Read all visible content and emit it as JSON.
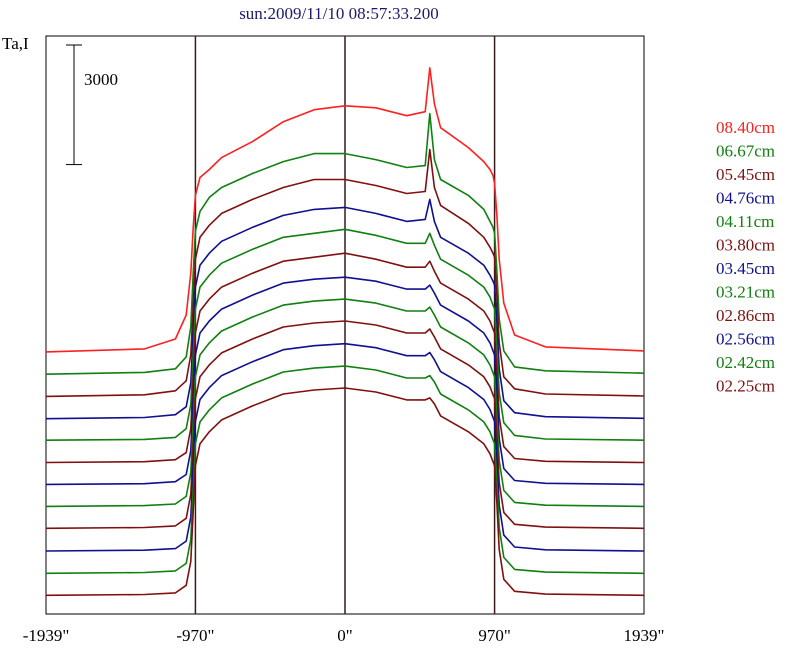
{
  "chart_data": {
    "type": "line",
    "title": "sun:2009/11/10 08:57:33.200",
    "ylabel": "Ta,I",
    "xlabel": "",
    "x_ticks": [
      {
        "value": -1939,
        "label": "-1939\""
      },
      {
        "value": -970,
        "label": "-970\""
      },
      {
        "value": 0,
        "label": "0\""
      },
      {
        "value": 970,
        "label": "970\""
      },
      {
        "value": 1939,
        "label": "1939\""
      }
    ],
    "xlim": [
      -1939,
      1939
    ],
    "vertical_lines": [
      -970,
      0,
      970
    ],
    "scale_bar": {
      "value": 3000,
      "label": "3000"
    },
    "grid": false,
    "legend_position": "right",
    "x": [
      -1939,
      -1300,
      -1100,
      -1030,
      -1000,
      -985,
      -970,
      -940,
      -880,
      -800,
      -600,
      -400,
      -200,
      0,
      200,
      400,
      520,
      550,
      580,
      620,
      800,
      900,
      940,
      960,
      970,
      985,
      1000,
      1030,
      1100,
      1300,
      1939
    ],
    "series": [
      {
        "name": "08.40cm",
        "color": "#ff2020",
        "values": [
          2575,
          2650,
          2900,
          3500,
          4550,
          5650,
          6500,
          6950,
          7150,
          7450,
          7850,
          8350,
          8650,
          8750,
          8700,
          8500,
          8600,
          9700,
          8800,
          8200,
          7700,
          7350,
          7150,
          7000,
          6800,
          6000,
          4900,
          3800,
          3000,
          2700,
          2600
        ]
      },
      {
        "name": "06.67cm",
        "color": "#108010",
        "values": [
          2015,
          2060,
          2150,
          2450,
          3200,
          4500,
          5600,
          6100,
          6450,
          6700,
          7050,
          7350,
          7550,
          7550,
          7400,
          7200,
          7250,
          8550,
          7400,
          6900,
          6500,
          6150,
          5850,
          5700,
          5550,
          4600,
          3400,
          2600,
          2200,
          2100,
          2040
        ]
      },
      {
        "name": "05.45cm",
        "color": "#801010",
        "values": [
          1460,
          1500,
          1600,
          1850,
          2500,
          3700,
          4900,
          5450,
          5750,
          6050,
          6400,
          6700,
          6900,
          6900,
          6750,
          6550,
          6600,
          7650,
          6700,
          6250,
          5800,
          5450,
          5200,
          5050,
          4950,
          3950,
          2800,
          1950,
          1650,
          1520,
          1470
        ]
      },
      {
        "name": "04.76cm",
        "color": "#101090",
        "values": [
          900,
          930,
          1000,
          1200,
          1800,
          3000,
          4200,
          4750,
          5050,
          5350,
          5700,
          6000,
          6150,
          6200,
          6050,
          5850,
          5900,
          6400,
          5850,
          5450,
          5050,
          4750,
          4500,
          4350,
          4250,
          3300,
          2150,
          1350,
          1050,
          950,
          910
        ]
      },
      {
        "name": "04.11cm",
        "color": "#108010",
        "values": [
          360,
          380,
          430,
          650,
          1250,
          2450,
          3650,
          4200,
          4500,
          4800,
          5150,
          5450,
          5550,
          5650,
          5500,
          5300,
          5300,
          5550,
          5250,
          4900,
          4500,
          4200,
          3950,
          3750,
          3650,
          2700,
          1550,
          800,
          480,
          390,
          360
        ]
      },
      {
        "name": "03.80cm",
        "color": "#801010",
        "values": [
          -200,
          -180,
          -130,
          50,
          650,
          1850,
          3050,
          3600,
          3900,
          4200,
          4550,
          4850,
          4950,
          5050,
          4900,
          4700,
          4700,
          4850,
          4600,
          4300,
          3900,
          3600,
          3350,
          3150,
          3050,
          2100,
          950,
          200,
          -100,
          -170,
          -200
        ]
      },
      {
        "name": "03.45cm",
        "color": "#101090",
        "values": [
          -750,
          -730,
          -680,
          -500,
          100,
          1300,
          2500,
          3050,
          3350,
          3650,
          4000,
          4300,
          4400,
          4450,
          4350,
          4150,
          4150,
          4250,
          4050,
          3750,
          3350,
          3050,
          2800,
          2600,
          2500,
          1550,
          400,
          -350,
          -650,
          -720,
          -750
        ]
      },
      {
        "name": "03.21cm",
        "color": "#108010",
        "values": [
          -1300,
          -1280,
          -1240,
          -1050,
          -450,
          750,
          1950,
          2500,
          2800,
          3100,
          3450,
          3750,
          3850,
          3900,
          3800,
          3600,
          3600,
          3700,
          3500,
          3200,
          2800,
          2500,
          2250,
          2050,
          1950,
          1000,
          -150,
          -900,
          -1200,
          -1270,
          -1300
        ]
      },
      {
        "name": "02.86cm",
        "color": "#801010",
        "values": [
          -1850,
          -1830,
          -1790,
          -1600,
          -1000,
          200,
          1400,
          1950,
          2250,
          2550,
          2900,
          3200,
          3300,
          3350,
          3250,
          3050,
          3050,
          3150,
          2950,
          2650,
          2250,
          1950,
          1700,
          1500,
          1400,
          450,
          -700,
          -1450,
          -1750,
          -1820,
          -1850
        ]
      },
      {
        "name": "02.56cm",
        "color": "#101090",
        "values": [
          -2420,
          -2400,
          -2360,
          -2170,
          -1570,
          -370,
          830,
          1380,
          1680,
          1980,
          2330,
          2630,
          2730,
          2780,
          2680,
          2480,
          2480,
          2560,
          2380,
          2080,
          1680,
          1380,
          1130,
          930,
          830,
          -120,
          -1270,
          -2020,
          -2320,
          -2390,
          -2420
        ]
      },
      {
        "name": "02.42cm",
        "color": "#108010",
        "values": [
          -2980,
          -2960,
          -2920,
          -2730,
          -2130,
          -930,
          270,
          820,
          1120,
          1420,
          1770,
          2070,
          2170,
          2220,
          2120,
          1920,
          1920,
          1980,
          1820,
          1520,
          1120,
          820,
          570,
          370,
          270,
          -680,
          -1830,
          -2580,
          -2880,
          -2950,
          -2980
        ]
      },
      {
        "name": "02.25cm",
        "color": "#801010",
        "values": [
          -3530,
          -3510,
          -3470,
          -3280,
          -2680,
          -1480,
          -280,
          270,
          570,
          870,
          1220,
          1520,
          1620,
          1670,
          1570,
          1370,
          1370,
          1420,
          1270,
          970,
          570,
          270,
          20,
          -180,
          -280,
          -1230,
          -2380,
          -3130,
          -3430,
          -3500,
          -3530
        ]
      }
    ],
    "ylim": [
      -4000,
      10500
    ]
  }
}
